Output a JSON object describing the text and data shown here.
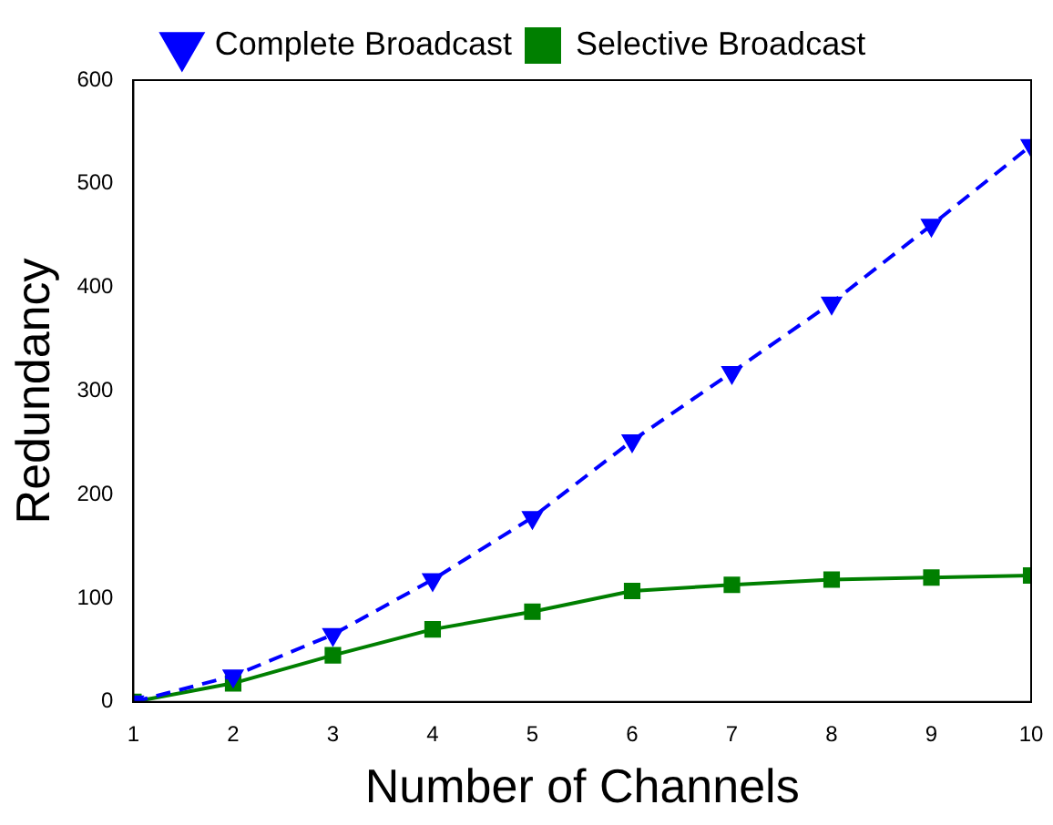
{
  "chart_data": {
    "type": "line",
    "xlabel": "Number of Channels",
    "ylabel": "Redundancy",
    "x": [
      1,
      2,
      3,
      4,
      5,
      6,
      7,
      8,
      9,
      10
    ],
    "xlim": [
      1,
      10
    ],
    "xticks": [
      1,
      2,
      3,
      4,
      5,
      6,
      7,
      8,
      9,
      10
    ],
    "ylim": [
      0,
      600
    ],
    "yticks": [
      0,
      100,
      200,
      300,
      400,
      500,
      600
    ],
    "grid": false,
    "legend": "top",
    "series": [
      {
        "name": "Complete Broadcast",
        "color": "#0000ff",
        "marker": "triangle",
        "line_style": "dashed",
        "values": [
          0,
          25,
          65,
          118,
          178,
          252,
          318,
          385,
          460,
          537
        ]
      },
      {
        "name": "Selective Broadcast",
        "color": "#007f00",
        "marker": "square",
        "line_style": "solid",
        "values": [
          0,
          18,
          45,
          70,
          87,
          107,
          113,
          118,
          120,
          122
        ]
      }
    ]
  }
}
